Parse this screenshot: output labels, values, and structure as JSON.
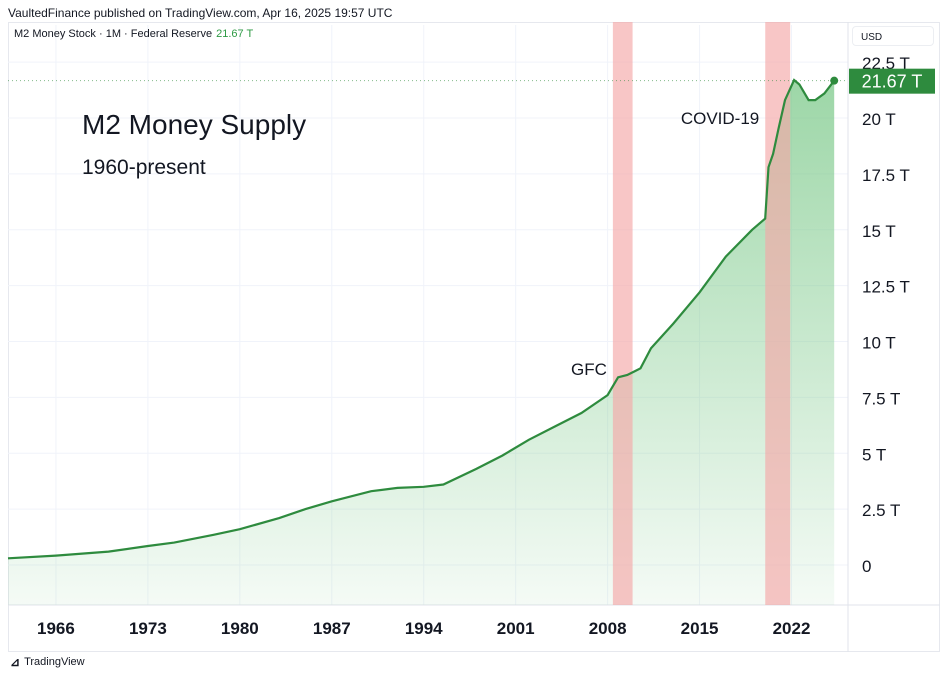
{
  "publisher": "VaultedFinance published on TradingView.com, Apr 16, 2025 19:57 UTC",
  "legend": {
    "symbol": "M2 Money Stock · 1M · Federal Reserve",
    "last_value": "21.67 T"
  },
  "currency": "USD",
  "price_label": "21.67 T",
  "footer": "TradingView",
  "colors": {
    "line": "#2e8b3e",
    "fill": "#7cc98a",
    "recession": "#f4a7a7",
    "price_tag": "#2e8b3e"
  },
  "chart_data": {
    "type": "area",
    "title": "M2 Money Supply",
    "subtitle": "1960-present",
    "ylim": [
      -1.8,
      23.8
    ],
    "xlim": [
      1962.35,
      2026.3
    ],
    "y_ticks": [
      {
        "v": 0,
        "label": "0"
      },
      {
        "v": 2.5,
        "label": "2.5 T"
      },
      {
        "v": 5,
        "label": "5 T"
      },
      {
        "v": 7.5,
        "label": "7.5 T"
      },
      {
        "v": 10,
        "label": "10 T"
      },
      {
        "v": 12.5,
        "label": "12.5 T"
      },
      {
        "v": 15,
        "label": "15 T"
      },
      {
        "v": 17.5,
        "label": "17.5 T"
      },
      {
        "v": 20,
        "label": "20 T"
      },
      {
        "v": 22.5,
        "label": "22.5 T"
      }
    ],
    "x_ticks": [
      {
        "v": 1966,
        "label": "1966"
      },
      {
        "v": 1973,
        "label": "1973"
      },
      {
        "v": 1980,
        "label": "1980"
      },
      {
        "v": 1987,
        "label": "1987"
      },
      {
        "v": 1994,
        "label": "1994"
      },
      {
        "v": 2001,
        "label": "2001"
      },
      {
        "v": 2008,
        "label": "2008"
      },
      {
        "v": 2015,
        "label": "2015"
      },
      {
        "v": 2022,
        "label": "2022"
      }
    ],
    "series": [
      {
        "x": [
          1962.35,
          1966,
          1970,
          1973,
          1975,
          1978,
          1980,
          1983,
          1985,
          1987,
          1990,
          1992,
          1994,
          1995.5,
          1998,
          2000,
          2002,
          2004,
          2006,
          2008,
          2008.8,
          2009.5,
          2010.5,
          2011.3,
          2013,
          2015,
          2017,
          2019,
          2020.0,
          2020.25,
          2020.6,
          2021,
          2021.5,
          2022.2,
          2022.6,
          2023.3,
          2023.8,
          2024.5,
          2025.25
        ],
        "y": [
          0.3,
          0.42,
          0.6,
          0.85,
          1.0,
          1.35,
          1.6,
          2.1,
          2.5,
          2.85,
          3.3,
          3.45,
          3.5,
          3.6,
          4.3,
          4.9,
          5.6,
          6.2,
          6.8,
          7.6,
          8.4,
          8.5,
          8.8,
          9.7,
          10.8,
          12.2,
          13.8,
          15.0,
          15.5,
          17.8,
          18.4,
          19.5,
          20.8,
          21.7,
          21.5,
          20.8,
          20.8,
          21.1,
          21.67
        ]
      }
    ],
    "annotations": [
      {
        "label": "GFC",
        "x0": 2008.4,
        "x1": 2009.9
      },
      {
        "label": "COVID-19",
        "x0": 2020.0,
        "x1": 2021.9
      }
    ],
    "last_value": 21.67
  }
}
